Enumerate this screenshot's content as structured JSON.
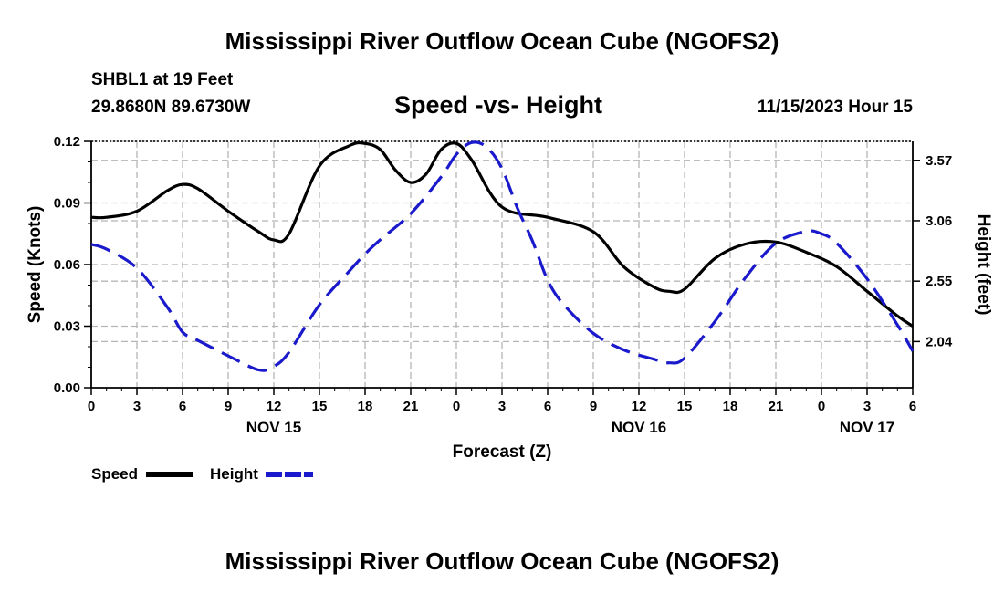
{
  "page": {
    "title": "Mississippi River Outflow Ocean Cube (NGOFS2)",
    "bottom_title": "Mississippi River Outflow Ocean Cube (NGOFS2)",
    "station": "SHBL1 at 19 Feet",
    "coords": "29.8680N  89.6730W",
    "subtitle": "Speed -vs- Height",
    "datetime": "11/15/2023 Hour 15"
  },
  "chart_data": {
    "type": "line",
    "title": "Speed -vs- Height",
    "xlabel": "Forecast (Z)",
    "ylabel": "Speed (Knots)",
    "y2label": "Height (feet)",
    "x_range": [
      0,
      54
    ],
    "ylim": [
      0,
      0.12
    ],
    "y2lim": [
      1.65,
      3.73
    ],
    "x_ticks": [
      0,
      3,
      6,
      9,
      12,
      15,
      18,
      21,
      24,
      27,
      30,
      33,
      36,
      39,
      42,
      45,
      48,
      51,
      54
    ],
    "x_tick_labels": [
      "0",
      "3",
      "6",
      "9",
      "12",
      "15",
      "18",
      "21",
      "0",
      "3",
      "6",
      "9",
      "12",
      "15",
      "18",
      "21",
      "0",
      "3",
      "6"
    ],
    "date_labels": [
      {
        "x": 12,
        "label": "NOV 15"
      },
      {
        "x": 36,
        "label": "NOV 16"
      },
      {
        "x": 51,
        "label": "NOV 17"
      }
    ],
    "y_ticks": [
      0,
      0.03,
      0.06,
      0.09,
      0.12
    ],
    "y_tick_labels": [
      "0.00",
      "0.03",
      "0.06",
      "0.09",
      "0.12"
    ],
    "y2_ticks": [
      2.04,
      2.55,
      3.06,
      3.57
    ],
    "y2_tick_labels": [
      "2.04",
      "2.55",
      "3.06",
      "3.57"
    ],
    "grid": true,
    "legend": {
      "position": "bottom-left",
      "speed_label": "Speed",
      "height_label": "Height"
    },
    "series": [
      {
        "name": "Speed",
        "axis": "left",
        "color": "#000000",
        "dash": "solid",
        "x": [
          0,
          1,
          3,
          5,
          6,
          7,
          9,
          11,
          12,
          13,
          15,
          17,
          18,
          19,
          20,
          21,
          22,
          23,
          24,
          25,
          27,
          30,
          33,
          35,
          37,
          38,
          39,
          41,
          43,
          45,
          47,
          49,
          51,
          53,
          54
        ],
        "values": [
          0.083,
          0.083,
          0.086,
          0.096,
          0.099,
          0.097,
          0.086,
          0.076,
          0.072,
          0.075,
          0.108,
          0.118,
          0.119,
          0.116,
          0.106,
          0.1,
          0.104,
          0.116,
          0.119,
          0.111,
          0.088,
          0.083,
          0.076,
          0.059,
          0.049,
          0.047,
          0.048,
          0.063,
          0.07,
          0.071,
          0.066,
          0.059,
          0.047,
          0.035,
          0.03
        ]
      },
      {
        "name": "Height",
        "axis": "right",
        "color": "#1a1acc",
        "dash": "dashed",
        "x": [
          0,
          1,
          3,
          5,
          6,
          7,
          9,
          11,
          12,
          13,
          15,
          17,
          18,
          19,
          21,
          23,
          24,
          25,
          26,
          27,
          28,
          29,
          30,
          31,
          33,
          35,
          37,
          38,
          39,
          41,
          43,
          45,
          47,
          48,
          49,
          51,
          53,
          54
        ],
        "values": [
          2.86,
          2.82,
          2.66,
          2.33,
          2.12,
          2.05,
          1.92,
          1.8,
          1.83,
          1.95,
          2.35,
          2.64,
          2.78,
          2.9,
          3.12,
          3.43,
          3.62,
          3.72,
          3.68,
          3.5,
          3.17,
          2.89,
          2.56,
          2.36,
          2.11,
          1.97,
          1.89,
          1.86,
          1.9,
          2.21,
          2.58,
          2.87,
          2.97,
          2.95,
          2.87,
          2.57,
          2.18,
          1.96
        ]
      }
    ]
  }
}
